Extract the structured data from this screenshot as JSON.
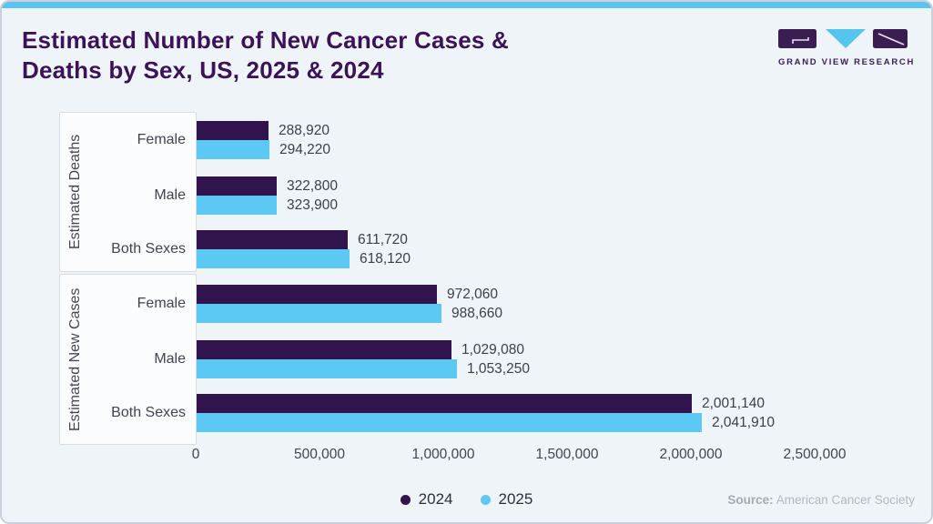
{
  "header": {
    "title_lines": [
      "Estimated Number of New Cancer Cases &",
      "Deaths by Sex, US, 2025 & 2024"
    ],
    "logo_text": "GRAND VIEW RESEARCH"
  },
  "chart_data": {
    "type": "bar",
    "orientation": "horizontal",
    "title": "Estimated Number of New Cancer Cases & Deaths by Sex, US, 2025 & 2024",
    "xlabel": "",
    "ylabel": "",
    "xlim": [
      0,
      2500000
    ],
    "x_ticks": [
      "0",
      "500,000",
      "1,000,000",
      "1,500,000",
      "2,000,000",
      "2,500,000"
    ],
    "grid": false,
    "legend_position": "bottom-center",
    "series": [
      {
        "name": "2024",
        "color": "#31144d"
      },
      {
        "name": "2025",
        "color": "#5cc8f4"
      }
    ],
    "groups": [
      {
        "label": "Estimated Deaths",
        "rows": [
          {
            "category": "Female",
            "values": [
              288920,
              294220
            ],
            "labels": [
              "288,920",
              "294,220"
            ]
          },
          {
            "category": "Male",
            "values": [
              322800,
              323900
            ],
            "labels": [
              "322,800",
              "323,900"
            ]
          },
          {
            "category": "Both Sexes",
            "values": [
              611720,
              618120
            ],
            "labels": [
              "611,720",
              "618,120"
            ]
          }
        ]
      },
      {
        "label": "Estimated New Cases",
        "rows": [
          {
            "category": "Female",
            "values": [
              972060,
              988660
            ],
            "labels": [
              "972,060",
              "988,660"
            ]
          },
          {
            "category": "Male",
            "values": [
              1029080,
              1053250
            ],
            "labels": [
              "1,029,080",
              "1,053,250"
            ]
          },
          {
            "category": "Both Sexes",
            "values": [
              2001140,
              2041910
            ],
            "labels": [
              "2,001,140",
              "2,041,910"
            ]
          }
        ]
      }
    ]
  },
  "footer": {
    "source_label": "Source:",
    "source_text": "American Cancer Society"
  },
  "colors": {
    "accent_blue": "#5cc8f4",
    "brand_purple": "#31144d",
    "title_purple": "#3b1356",
    "card_bg": "#eff4f9",
    "box_bg": "#fafcfe",
    "box_border": "#d8dde3"
  }
}
